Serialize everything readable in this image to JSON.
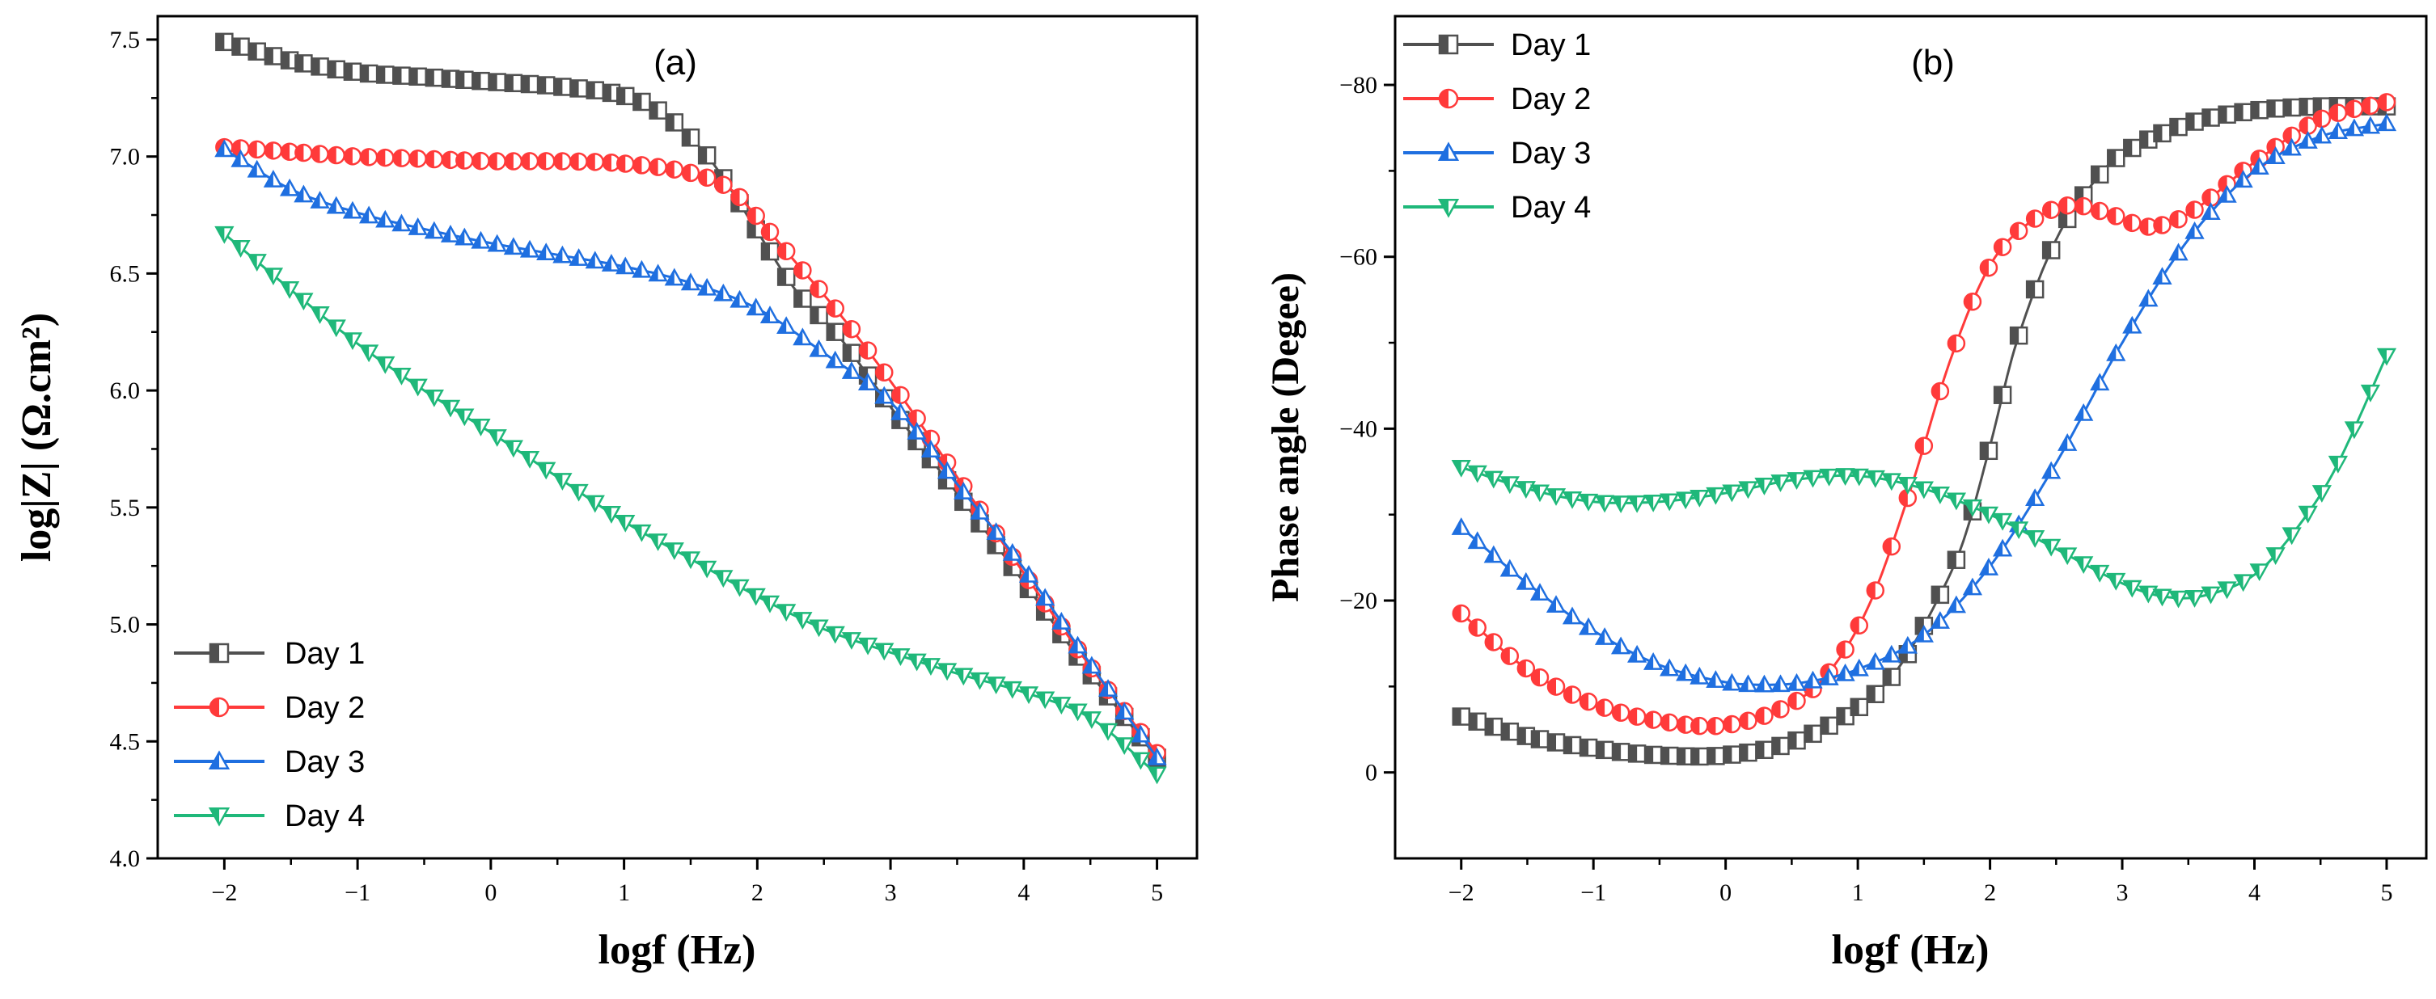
{
  "chart_data": [
    {
      "type": "line",
      "panel_label": "(a)",
      "xlabel": "logf (Hz)",
      "ylabel": "log|Z| (Ω.cm²)",
      "xlim": [
        -2.5,
        5.3
      ],
      "ylim": [
        4.0,
        7.6
      ],
      "xticks": [
        -2,
        -1,
        0,
        1,
        2,
        3,
        4,
        5
      ],
      "xtick_labels": [
        "−2",
        "−1",
        "0",
        "1",
        "2",
        "3",
        "4",
        "5"
      ],
      "yticks": [
        4.0,
        4.5,
        5.0,
        5.5,
        6.0,
        6.5,
        7.0,
        7.5
      ],
      "ytick_labels": [
        "4.0",
        "4.5",
        "5.0",
        "5.5",
        "6.0",
        "6.5",
        "7.0",
        "7.5"
      ],
      "legend_position": "bottom-left",
      "series": [
        {
          "name": "Day 1",
          "color": "#505050",
          "marker": "square",
          "x": [
            -2,
            -1.5,
            -1,
            -0.5,
            0,
            0.5,
            1,
            1.3,
            1.6,
            1.8,
            2,
            2.3,
            2.6,
            3,
            3.5,
            4,
            4.5,
            5
          ],
          "y": [
            7.49,
            7.41,
            7.36,
            7.34,
            7.32,
            7.3,
            7.26,
            7.18,
            7.02,
            6.86,
            6.68,
            6.42,
            6.24,
            5.93,
            5.56,
            5.18,
            4.79,
            4.43
          ]
        },
        {
          "name": "Day 2",
          "color": "#ff3a3a",
          "marker": "circle",
          "x": [
            -2,
            -1.5,
            -1,
            -0.5,
            0,
            0.5,
            1,
            1.5,
            1.8,
            2,
            2.3,
            2.6,
            3,
            3.5,
            4,
            4.5,
            5
          ],
          "y": [
            7.04,
            7.02,
            7.0,
            6.99,
            6.98,
            6.98,
            6.97,
            6.93,
            6.86,
            6.74,
            6.54,
            6.34,
            6.04,
            5.63,
            5.22,
            4.82,
            4.45
          ]
        },
        {
          "name": "Day 3",
          "color": "#1f6fe0",
          "marker": "triangle-up",
          "x": [
            -2,
            -1.5,
            -1,
            -0.5,
            0,
            0.5,
            1,
            1.5,
            2,
            2.5,
            3,
            3.5,
            4,
            4.5,
            5
          ],
          "y": [
            7.03,
            6.86,
            6.76,
            6.69,
            6.63,
            6.58,
            6.53,
            6.46,
            6.35,
            6.16,
            5.95,
            5.6,
            5.24,
            4.83,
            4.43
          ]
        },
        {
          "name": "Day 4",
          "color": "#1fb87a",
          "marker": "triangle-down",
          "x": [
            -2,
            -1.5,
            -1,
            -0.5,
            0,
            0.5,
            1,
            1.5,
            2,
            2.5,
            3,
            3.5,
            4,
            4.5,
            5
          ],
          "y": [
            6.67,
            6.43,
            6.2,
            6.0,
            5.82,
            5.63,
            5.44,
            5.28,
            5.12,
            4.98,
            4.88,
            4.79,
            4.71,
            4.6,
            4.36
          ]
        }
      ]
    },
    {
      "type": "line",
      "panel_label": "(b)",
      "xlabel": "logf (Hz)",
      "ylabel": "Phase angle (Degee)",
      "xlim": [
        -2.5,
        5.3
      ],
      "ylim": [
        10,
        -88
      ],
      "xticks": [
        -2,
        -1,
        0,
        1,
        2,
        3,
        4,
        5
      ],
      "xtick_labels": [
        "−2",
        "−1",
        "0",
        "1",
        "2",
        "3",
        "4",
        "5"
      ],
      "yticks": [
        0,
        -20,
        -40,
        -60,
        -80
      ],
      "ytick_labels": [
        "0",
        "−20",
        "−40",
        "−60",
        "−80"
      ],
      "legend_position": "top-left",
      "series": [
        {
          "name": "Day 1",
          "color": "#505050",
          "marker": "square",
          "x": [
            -2,
            -1.5,
            -1,
            -0.5,
            0,
            0.5,
            1,
            1.3,
            1.6,
            1.8,
            2,
            2.2,
            2.5,
            2.8,
            3,
            3.5,
            4,
            4.5,
            5
          ],
          "y": [
            -6.5,
            -4.2,
            -2.8,
            -2.0,
            -2.0,
            -3.5,
            -7.5,
            -12,
            -20,
            -27,
            -38,
            -50,
            -62,
            -69,
            -72,
            -75.5,
            -77,
            -77.5,
            -77.5
          ]
        },
        {
          "name": "Day 2",
          "color": "#ff3a3a",
          "marker": "circle",
          "x": [
            -2,
            -1.5,
            -1,
            -0.5,
            0,
            0.5,
            0.8,
            1.1,
            1.4,
            1.7,
            2,
            2.3,
            2.6,
            2.9,
            3.2,
            3.5,
            4,
            4.5,
            5
          ],
          "y": [
            -18.5,
            -12,
            -8,
            -6,
            -5.5,
            -8,
            -12,
            -20,
            -33,
            -48,
            -59,
            -64,
            -66,
            -65,
            -63.5,
            -65,
            -71,
            -76,
            -78
          ]
        },
        {
          "name": "Day 3",
          "color": "#1f6fe0",
          "marker": "triangle-up",
          "x": [
            -2,
            -1.5,
            -1,
            -0.5,
            0,
            0.3,
            0.6,
            1,
            1.5,
            2,
            2.5,
            3,
            3.5,
            4,
            4.5,
            5
          ],
          "y": [
            -28.5,
            -22,
            -16.5,
            -12.5,
            -10.5,
            -10.2,
            -10.5,
            -12,
            -16,
            -24,
            -36,
            -50,
            -62,
            -70,
            -74,
            -75.5
          ]
        },
        {
          "name": "Day 4",
          "color": "#1fb87a",
          "marker": "triangle-down",
          "x": [
            -2,
            -1.5,
            -1,
            -0.5,
            0,
            0.5,
            1,
            1.5,
            2,
            2.5,
            3,
            3.3,
            3.6,
            4,
            4.3,
            4.6,
            5
          ],
          "y": [
            -35.5,
            -33,
            -31.5,
            -31.5,
            -32.5,
            -34,
            -34.5,
            -33,
            -30,
            -26,
            -22,
            -20.5,
            -20.5,
            -23,
            -28,
            -35,
            -48.5
          ]
        }
      ]
    }
  ]
}
